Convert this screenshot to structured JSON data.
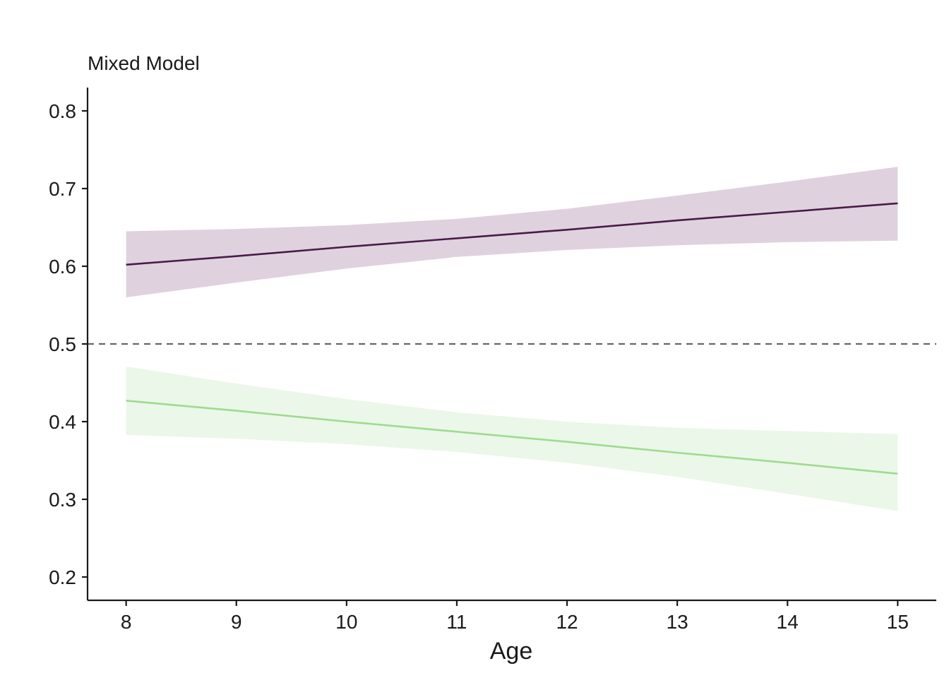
{
  "chart_data": {
    "type": "line",
    "title": "Mixed Model",
    "xlabel": "Age",
    "ylabel": "",
    "xlim": [
      7.65,
      15.35
    ],
    "ylim": [
      0.17,
      0.83
    ],
    "xticks": [
      8,
      9,
      10,
      11,
      12,
      13,
      14,
      15
    ],
    "yticks": [
      0.2,
      0.3,
      0.4,
      0.5,
      0.6,
      0.7,
      0.8
    ],
    "grid": false,
    "legend": "none",
    "reference_line": {
      "y": 0.5,
      "style": "dashed",
      "color": "#666666"
    },
    "series": [
      {
        "color": "#4a1a4a",
        "band_color": "#dfd2de",
        "x": [
          8,
          9,
          10,
          11,
          12,
          13,
          14,
          15
        ],
        "y": [
          0.602,
          0.613,
          0.625,
          0.636,
          0.647,
          0.659,
          0.67,
          0.681
        ],
        "lower": [
          0.56,
          0.579,
          0.597,
          0.612,
          0.621,
          0.627,
          0.631,
          0.633
        ],
        "upper": [
          0.645,
          0.648,
          0.653,
          0.661,
          0.674,
          0.691,
          0.709,
          0.728
        ]
      },
      {
        "color": "#9ddc8f",
        "band_color": "#ebf7e8",
        "x": [
          8,
          9,
          10,
          11,
          12,
          13,
          14,
          15
        ],
        "y": [
          0.427,
          0.414,
          0.4,
          0.387,
          0.374,
          0.36,
          0.347,
          0.333
        ],
        "lower": [
          0.383,
          0.378,
          0.371,
          0.361,
          0.347,
          0.329,
          0.307,
          0.285
        ],
        "upper": [
          0.471,
          0.449,
          0.429,
          0.412,
          0.4,
          0.392,
          0.388,
          0.384
        ]
      }
    ]
  }
}
